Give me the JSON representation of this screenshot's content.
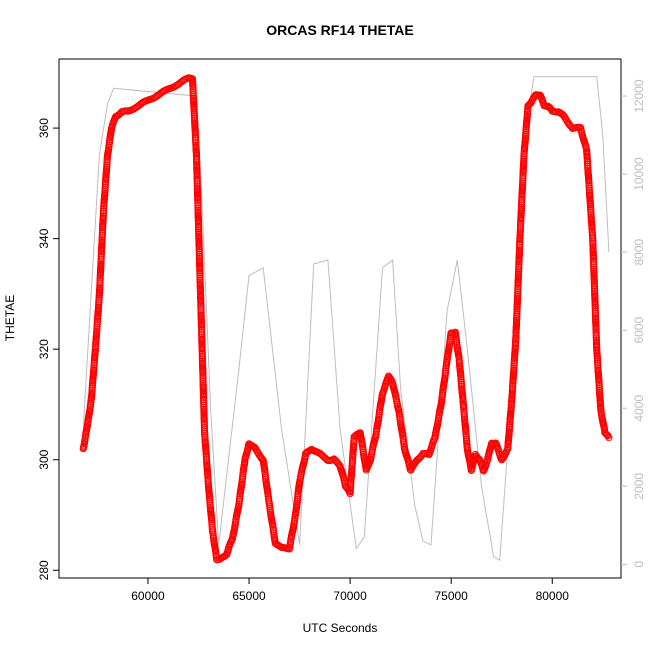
{
  "chart_data": {
    "type": "scatter",
    "title": "ORCAS RF14 THETAE",
    "xlabel": "UTC Seconds",
    "ylabel": "THETAE",
    "xlim": [
      55600,
      83400
    ],
    "ylim": [
      278.6,
      372.5
    ],
    "x_ticks": [
      60000,
      65000,
      70000,
      75000,
      80000
    ],
    "y_ticks": [
      280,
      300,
      320,
      340,
      360
    ],
    "y2lim": [
      -350,
      12950
    ],
    "y2_ticks": [
      0,
      2000,
      4000,
      6000,
      8000,
      10000,
      12000
    ],
    "grid": false,
    "legend": "none",
    "colors": {
      "thetae": "#ff0000",
      "altitude": "#bdbdbd",
      "right_axis": "#bdbdbd"
    },
    "series": [
      {
        "axis": "left",
        "style": "points+line",
        "x": [
          56800,
          57000,
          57200,
          57400,
          57600,
          57800,
          58000,
          58200,
          58400,
          58700,
          59000,
          59500,
          60000,
          60500,
          61000,
          61500,
          62000,
          62200,
          62400,
          62600,
          62800,
          63000,
          63200,
          63400,
          63600,
          63900,
          64200,
          64500,
          64800,
          65000,
          65300,
          65700,
          66000,
          66300,
          66600,
          67000,
          67300,
          67500,
          67800,
          68100,
          68500,
          68900,
          69200,
          69500,
          69800,
          70000,
          70200,
          70500,
          70800,
          71000,
          71300,
          71600,
          71900,
          72100,
          72400,
          72700,
          73000,
          73300,
          73600,
          73900,
          74200,
          74500,
          74800,
          75000,
          75200,
          75400,
          75600,
          75800,
          76000,
          76200,
          76400,
          76600,
          76800,
          77000,
          77200,
          77500,
          77800,
          78000,
          78200,
          78400,
          78600,
          78800,
          79000,
          79200,
          79400,
          79600,
          79800,
          80000,
          80300,
          80600,
          81000,
          81400,
          81700,
          82000,
          82200,
          82400,
          82600,
          82800
        ],
        "y": [
          302,
          306,
          311,
          320,
          330,
          345,
          355,
          360,
          362,
          363,
          363,
          364,
          365,
          366,
          367,
          368,
          369,
          369,
          355,
          330,
          305,
          295,
          287,
          282,
          282,
          283,
          286,
          292,
          300,
          303,
          302,
          300,
          292,
          285,
          284,
          284,
          290,
          296,
          301,
          302,
          301,
          300,
          300,
          299,
          295,
          294,
          304,
          305,
          298,
          300,
          305,
          312,
          315,
          314,
          309,
          302,
          298,
          300,
          301,
          301,
          304,
          310,
          318,
          323,
          323,
          318,
          310,
          302,
          298,
          301,
          300,
          298,
          300,
          303,
          303,
          300,
          302,
          311,
          322,
          340,
          355,
          364,
          365,
          366,
          366,
          364,
          364,
          363,
          363,
          362,
          360,
          360,
          356,
          340,
          320,
          309,
          305,
          304
        ]
      },
      {
        "axis": "right",
        "style": "line",
        "x": [
          56800,
          57200,
          57600,
          58000,
          58300,
          62400,
          62700,
          63100,
          63500,
          64500,
          65000,
          65700,
          66600,
          67500,
          68200,
          68900,
          69500,
          70300,
          70700,
          71600,
          72100,
          72500,
          73200,
          73600,
          74000,
          74800,
          75300,
          75800,
          76500,
          77100,
          77400,
          77800,
          78200,
          78600,
          79100,
          82200,
          82500,
          82800
        ],
        "y": [
          3500,
          7000,
          10500,
          11800,
          12200,
          12000,
          9000,
          4000,
          500,
          5000,
          7400,
          7600,
          3500,
          500,
          7700,
          7800,
          3500,
          400,
          700,
          7600,
          7800,
          4500,
          1500,
          600,
          500,
          6500,
          7800,
          5500,
          2000,
          200,
          100,
          3000,
          7500,
          11000,
          12500,
          12500,
          11000,
          8000
        ]
      }
    ]
  }
}
